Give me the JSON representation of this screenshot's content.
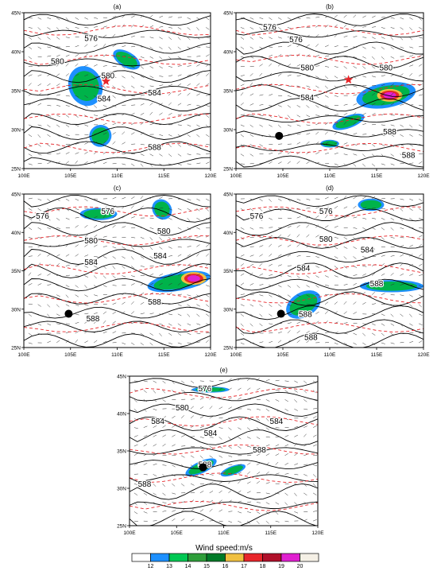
{
  "panels": [
    {
      "label": "(a)",
      "contours": [
        {
          "text": "576"
        },
        {
          "text": "580"
        },
        {
          "text": "580"
        },
        {
          "text": "584"
        },
        {
          "text": "584"
        },
        {
          "text": "588"
        }
      ],
      "marker": "star"
    },
    {
      "label": "(b)",
      "contours": [
        {
          "text": "576"
        },
        {
          "text": "576"
        },
        {
          "text": "580"
        },
        {
          "text": "580"
        },
        {
          "text": "584"
        },
        {
          "text": "588"
        },
        {
          "text": "588"
        }
      ],
      "marker": "star-and-dot"
    },
    {
      "label": "(c)",
      "contours": [
        {
          "text": "576"
        },
        {
          "text": "576"
        },
        {
          "text": "580"
        },
        {
          "text": "580"
        },
        {
          "text": "584"
        },
        {
          "text": "584"
        },
        {
          "text": "588"
        },
        {
          "text": "588"
        }
      ],
      "marker": "dot"
    },
    {
      "label": "(d)",
      "contours": [
        {
          "text": "576"
        },
        {
          "text": "576"
        },
        {
          "text": "580"
        },
        {
          "text": "584"
        },
        {
          "text": "584"
        },
        {
          "text": "588"
        },
        {
          "text": "588"
        },
        {
          "text": "588"
        }
      ],
      "marker": "dot"
    },
    {
      "label": "(e)",
      "contours": [
        {
          "text": "576"
        },
        {
          "text": "580"
        },
        {
          "text": "584"
        },
        {
          "text": "584"
        },
        {
          "text": "584"
        },
        {
          "text": "588"
        },
        {
          "text": "588"
        },
        {
          "text": "588"
        }
      ],
      "marker": "dot"
    }
  ],
  "axes": {
    "x_ticks": [
      "100E",
      "105E",
      "110E",
      "115E",
      "120E"
    ],
    "y_ticks": [
      "45N",
      "40N",
      "35N",
      "30N",
      "25N"
    ]
  },
  "colorbar": {
    "title": "Wind speed:m/s",
    "labels": [
      "12",
      "13",
      "14",
      "15",
      "16",
      "17",
      "18",
      "19",
      "20"
    ],
    "colors": [
      "#ffffff",
      "#1e90ff",
      "#00c853",
      "#2e9e3a",
      "#007a28",
      "#f0c040",
      "#e8262a",
      "#b0102a",
      "#e020d0",
      "#f5f0e6"
    ]
  }
}
